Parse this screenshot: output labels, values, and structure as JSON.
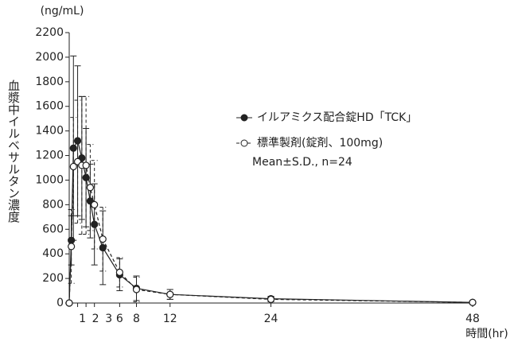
{
  "chart_data": {
    "type": "line",
    "y_unit": "(ng/mL)",
    "y_label": "血漿中イルベサルタン濃度",
    "x_label": "時間(hr)",
    "annotation": "Mean±S.D., n=24",
    "x": [
      0,
      0.25,
      0.5,
      1,
      1.5,
      2,
      2.5,
      3,
      4,
      6,
      8,
      12,
      24,
      48
    ],
    "series": [
      {
        "name": "イルアミクス配合錠HD「TCK」",
        "color": "#222222",
        "marker": "filled",
        "dash": false,
        "values": [
          0,
          510,
          1260,
          1320,
          1180,
          1020,
          830,
          640,
          450,
          230,
          120,
          70,
          35,
          5
        ],
        "errors": [
          0,
          200,
          750,
          610,
          500,
          400,
          300,
          330,
          300,
          130,
          100,
          40,
          20,
          5
        ]
      },
      {
        "name": "標準製剤(錠剤、100mg)",
        "color": "#222222",
        "marker": "open",
        "dash": true,
        "values": [
          0,
          460,
          1110,
          1150,
          1120,
          1120,
          940,
          800,
          520,
          250,
          110,
          70,
          30,
          5
        ],
        "errors": [
          0,
          300,
          400,
          500,
          560,
          560,
          350,
          360,
          260,
          120,
          100,
          40,
          20,
          5
        ]
      }
    ],
    "xlim": [
      0,
      48
    ],
    "ylim": [
      0,
      2200
    ],
    "xticks": [
      1,
      2,
      3,
      6,
      8,
      12,
      24,
      48
    ],
    "yticks": [
      0,
      200,
      400,
      600,
      800,
      1000,
      1200,
      1400,
      1600,
      1800,
      2000,
      2200
    ]
  }
}
